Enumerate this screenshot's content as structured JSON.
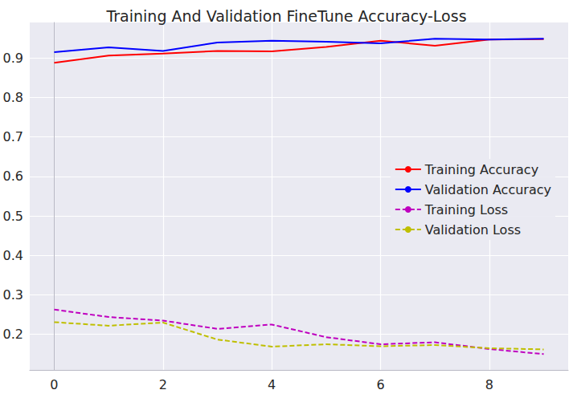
{
  "chart_data": {
    "type": "line",
    "title": "Training And Validation FineTune Accuracy-Loss",
    "x": [
      0,
      1,
      2,
      3,
      4,
      5,
      6,
      7,
      8,
      9
    ],
    "series": [
      {
        "name": "Training Accuracy",
        "color": "#ff0000",
        "line_style": "solid",
        "values": [
          0.888,
          0.906,
          0.911,
          0.918,
          0.917,
          0.928,
          0.944,
          0.931,
          0.947,
          0.948
        ]
      },
      {
        "name": "Validation Accuracy",
        "color": "#0000ff",
        "line_style": "solid",
        "values": [
          0.915,
          0.927,
          0.918,
          0.939,
          0.944,
          0.941,
          0.937,
          0.949,
          0.947,
          0.949
        ]
      },
      {
        "name": "Training Loss",
        "color": "#bf00bf",
        "line_style": "dashed",
        "values": [
          0.263,
          0.244,
          0.235,
          0.214,
          0.225,
          0.193,
          0.175,
          0.18,
          0.163,
          0.15
        ]
      },
      {
        "name": "Validation Loss",
        "color": "#bfbf00",
        "line_style": "dashed",
        "values": [
          0.231,
          0.222,
          0.23,
          0.187,
          0.169,
          0.175,
          0.17,
          0.173,
          0.165,
          0.162
        ]
      }
    ],
    "xlim": [
      -0.45,
      9.45
    ],
    "xticks": [
      0,
      2,
      4,
      6,
      8
    ],
    "ylim": [
      0.11,
      0.99
    ],
    "yticks": [
      0.2,
      0.3,
      0.4,
      0.5,
      0.6,
      0.7,
      0.8,
      0.9
    ],
    "grid": true,
    "legend": "center right"
  }
}
